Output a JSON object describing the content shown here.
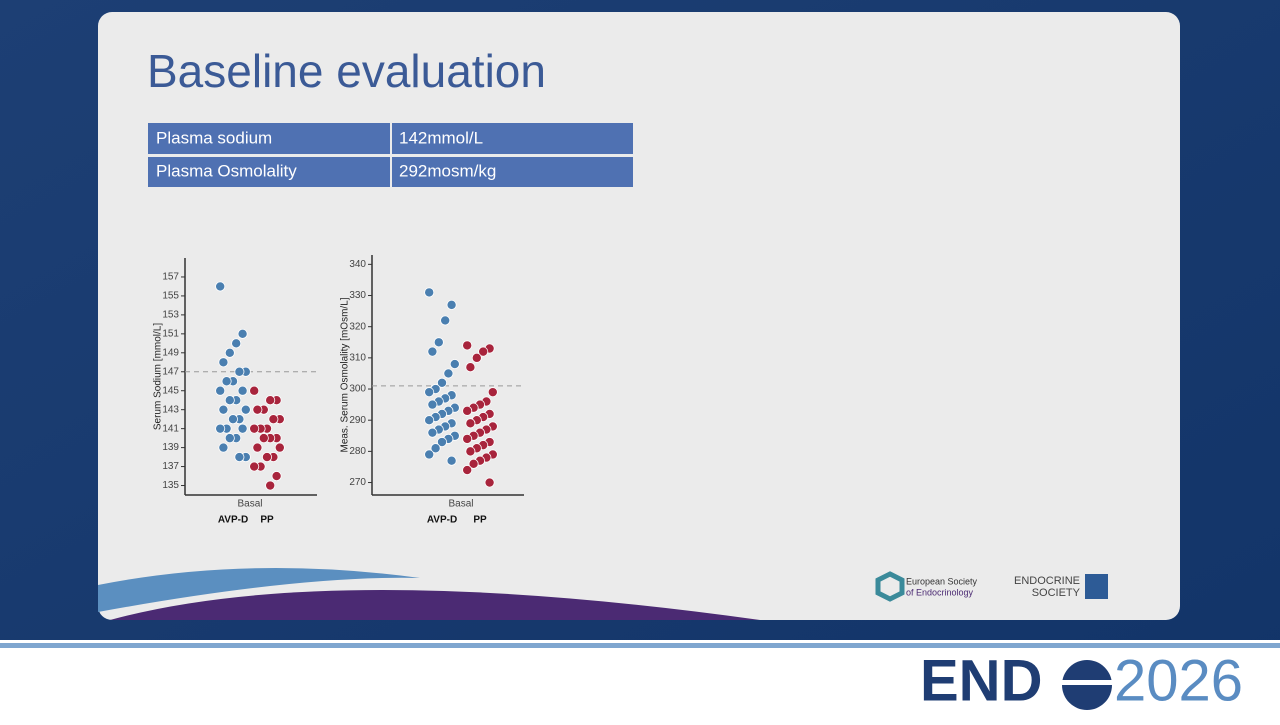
{
  "header": {
    "title": "Baseline evaluation"
  },
  "table": {
    "rows": [
      [
        "Plasma sodium",
        "142mmol/L"
      ],
      [
        "Plasma Osmolality",
        "292mosm/kg"
      ]
    ]
  },
  "charts": [
    {
      "type": "strip",
      "ylabel": "Serum Sodium [mmol/L]",
      "xlabel": "Basal",
      "ylim": [
        134,
        159
      ],
      "yticks": [
        135,
        137,
        139,
        141,
        143,
        145,
        147,
        149,
        151,
        153,
        155,
        157
      ],
      "reference_line": 147,
      "series": [
        {
          "name": "AVP-D",
          "color": "#4a7fb0",
          "values": [
            156,
            151,
            150,
            149,
            148,
            147,
            147,
            146,
            146,
            145,
            145,
            144,
            144,
            143,
            143,
            142,
            142,
            141,
            141,
            141,
            140,
            140,
            139,
            138,
            138
          ]
        },
        {
          "name": "PP",
          "color": "#a8243c",
          "values": [
            145,
            144,
            144,
            143,
            143,
            142,
            142,
            141,
            141,
            141,
            140,
            140,
            140,
            139,
            139,
            138,
            138,
            137,
            137,
            136,
            135
          ]
        }
      ]
    },
    {
      "type": "strip",
      "ylabel": "Meas. Serum Osmolality [mOsm/L]",
      "xlabel": "Basal",
      "ylim": [
        266,
        343
      ],
      "yticks": [
        270,
        280,
        290,
        300,
        310,
        320,
        330,
        340
      ],
      "reference_line": 301,
      "series": [
        {
          "name": "AVP-D",
          "color": "#4a7fb0",
          "values": [
            331,
            327,
            322,
            315,
            312,
            308,
            305,
            302,
            300,
            299,
            298,
            297,
            296,
            295,
            294,
            293,
            292,
            291,
            290,
            289,
            288,
            287,
            286,
            285,
            284,
            283,
            281,
            279,
            277
          ]
        },
        {
          "name": "PP",
          "color": "#a8243c",
          "values": [
            314,
            313,
            312,
            310,
            307,
            299,
            296,
            295,
            294,
            293,
            292,
            291,
            290,
            289,
            288,
            287,
            286,
            285,
            284,
            283,
            282,
            281,
            280,
            279,
            278,
            277,
            276,
            274,
            270
          ]
        }
      ]
    }
  ],
  "logos": {
    "ese": [
      "European Society",
      "of Endocrinology"
    ],
    "endo_society": [
      "ENDOCRINE",
      "SOCIETY"
    ]
  },
  "footer": {
    "brand": "END",
    "year": "2026"
  }
}
